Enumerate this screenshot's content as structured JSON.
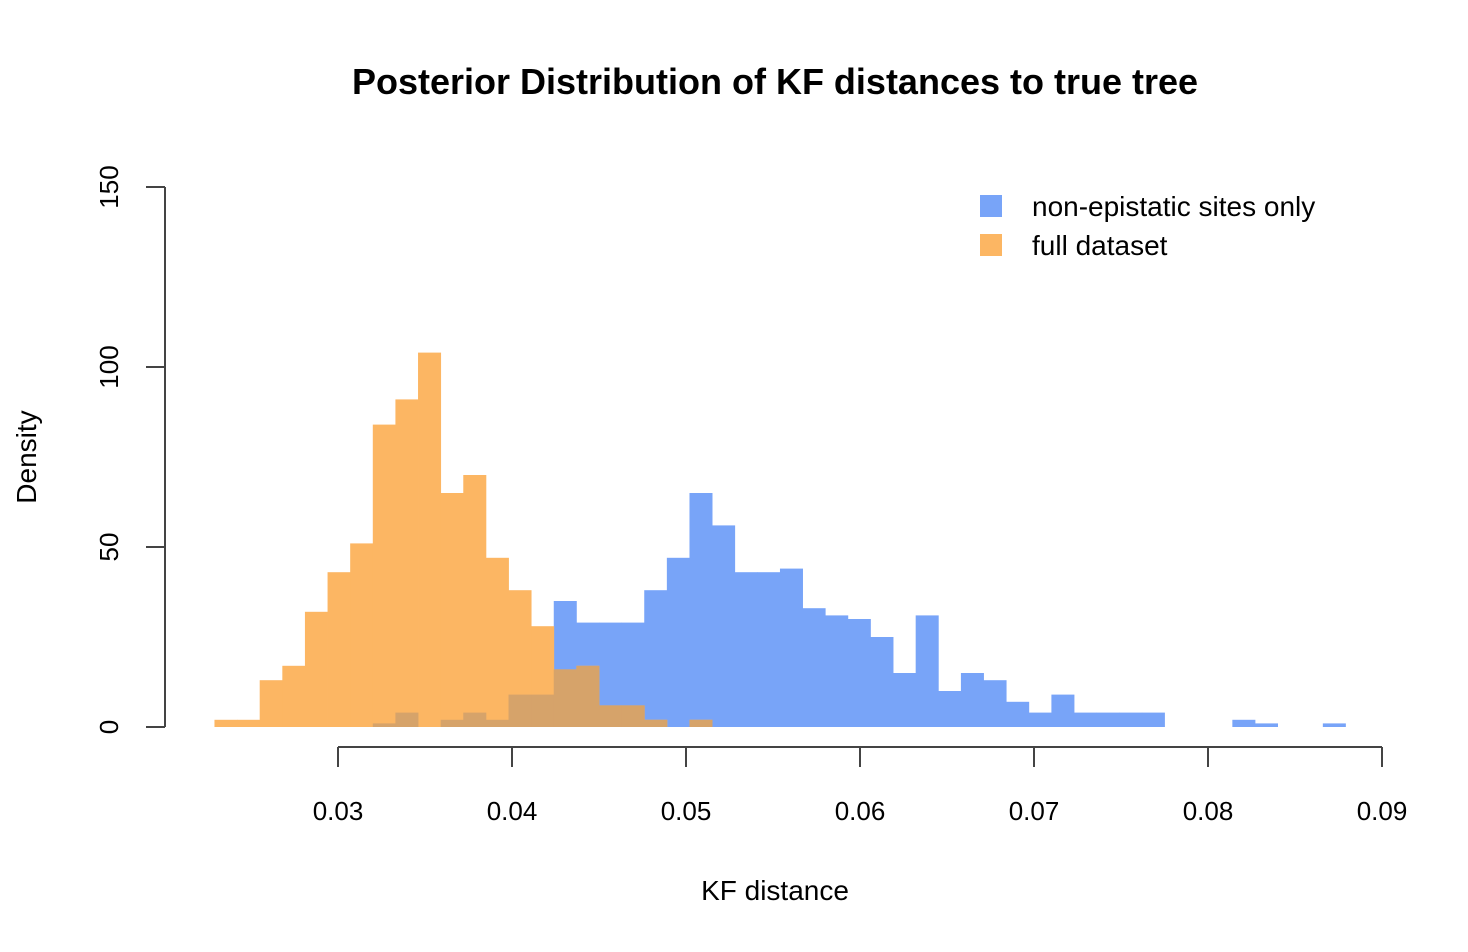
{
  "chart_data": {
    "type": "bar",
    "title": "Posterior Distribution of KF distances to true tree",
    "xlabel": "KF distance",
    "ylabel": "Density",
    "xlim": [
      0.02,
      0.09
    ],
    "ylim": [
      0,
      150
    ],
    "x_ticks": [
      0.03,
      0.04,
      0.05,
      0.06,
      0.07,
      0.08,
      0.09
    ],
    "x_tick_labels": [
      "0.03",
      "0.04",
      "0.05",
      "0.06",
      "0.07",
      "0.08",
      "0.09"
    ],
    "y_ticks": [
      0,
      50,
      100,
      150
    ],
    "y_tick_labels": [
      "0",
      "50",
      "100",
      "150"
    ],
    "bin_width": 0.0013,
    "legend_position": "top-right",
    "grid": false,
    "series": [
      {
        "name": "non-epistatic sites only",
        "color": "#78a4f8",
        "bin_starts": [
          0.032,
          0.0333,
          0.0346,
          0.0359,
          0.0372,
          0.0385,
          0.0398,
          0.0411,
          0.0424,
          0.0437,
          0.045,
          0.0463,
          0.0476,
          0.0489,
          0.0502,
          0.0515,
          0.0528,
          0.0541,
          0.0554,
          0.0567,
          0.058,
          0.0593,
          0.0606,
          0.0619,
          0.0632,
          0.0645,
          0.0658,
          0.0671,
          0.0684,
          0.0697,
          0.071,
          0.0723,
          0.0736,
          0.0749,
          0.0762,
          0.0775,
          0.0788,
          0.0801,
          0.0814,
          0.0827,
          0.084,
          0.0853,
          0.0866
        ],
        "values": [
          1,
          4,
          0,
          2,
          4,
          2,
          9,
          9,
          35,
          29,
          29,
          29,
          38,
          47,
          65,
          56,
          43,
          43,
          44,
          33,
          31,
          30,
          25,
          15,
          31,
          10,
          15,
          13,
          7,
          4,
          9,
          4,
          4,
          4,
          4,
          0,
          0,
          0,
          2,
          1,
          0,
          0,
          1
        ]
      },
      {
        "name": "full dataset",
        "color": "#fcb663",
        "bin_starts": [
          0.0229,
          0.0242,
          0.0255,
          0.0268,
          0.0281,
          0.0294,
          0.0307,
          0.032,
          0.0333,
          0.0346,
          0.0359,
          0.0372,
          0.0385,
          0.0398,
          0.0411,
          0.0424,
          0.0437,
          0.045,
          0.0463,
          0.0476,
          0.0489,
          0.0502
        ],
        "values": [
          2,
          2,
          13,
          17,
          32,
          43,
          51,
          84,
          91,
          104,
          65,
          70,
          47,
          38,
          28,
          16,
          17,
          6,
          6,
          2,
          0,
          2
        ]
      }
    ]
  }
}
